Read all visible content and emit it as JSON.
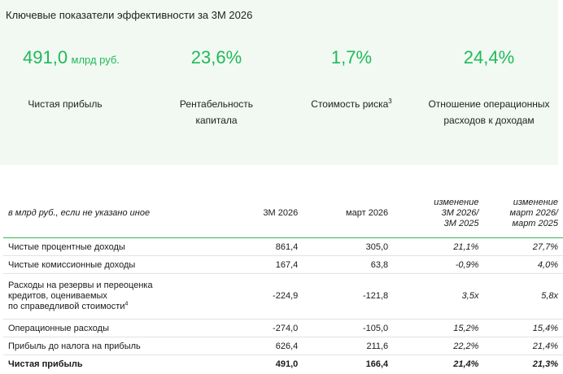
{
  "kpi": {
    "title": "Ключевые показатели эффективности за 3М 2026",
    "items": [
      {
        "value": "491,0",
        "unit": "млрд руб.",
        "label": "Чистая прибыль"
      },
      {
        "value": "23,6%",
        "label1": "Рентабельность",
        "label2": "капитала"
      },
      {
        "value": "1,7%",
        "label": "Стоимость риска",
        "sup": "3"
      },
      {
        "value": "24,4%",
        "label1": "Отношение операционных",
        "label2": "расходов к доходам"
      }
    ]
  },
  "table": {
    "headers": {
      "metric": "в млрд руб., если не указано иное",
      "q": "3М 2026",
      "m": "март 2026",
      "ch1_l1": "изменение",
      "ch1_l2": "3М 2026/",
      "ch1_l3": "3М 2025",
      "ch2_l1": "изменение",
      "ch2_l2": "март 2026/",
      "ch2_l3": "март 2025"
    },
    "rows": [
      {
        "metric": "Чистые процентные доходы",
        "q": "861,4",
        "m": "305,0",
        "ch1": "21,1%",
        "ch2": "27,7%"
      },
      {
        "metric": "Чистые комиссионные доходы",
        "q": "167,4",
        "m": "63,8",
        "ch1": "-0,9%",
        "ch2": "4,0%"
      },
      {
        "metric_l1": "Расходы на резервы и переоценка",
        "metric_l2": "кредитов, оцениваемых",
        "metric_l3": "по справедливой стоимости",
        "sup": "4",
        "q": "-224,9",
        "m": "-121,8",
        "ch1": "3,5x",
        "ch2": "5,8x"
      },
      {
        "metric": "Операционные расходы",
        "q": "-274,0",
        "m": "-105,0",
        "ch1": "15,2%",
        "ch2": "15,4%"
      },
      {
        "metric": "Прибыль до налога на прибыль",
        "q": "626,4",
        "m": "211,6",
        "ch1": "22,2%",
        "ch2": "21,4%"
      },
      {
        "metric": "Чистая прибыль",
        "q": "491,0",
        "m": "166,4",
        "ch1": "21,4%",
        "ch2": "21,3%"
      }
    ]
  },
  "colors": {
    "accent": "#21b95a",
    "panel": "#f1f9f2",
    "rule": "#35b74c"
  }
}
